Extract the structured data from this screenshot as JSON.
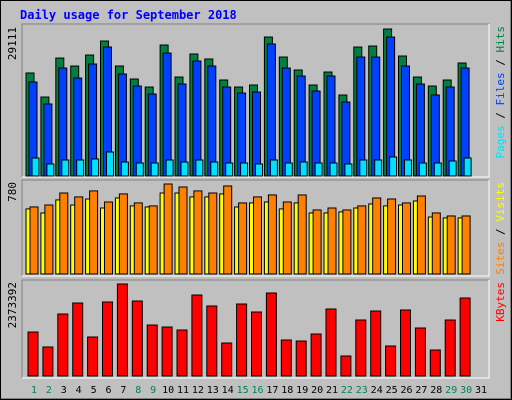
{
  "chart_data": {
    "type": "bar",
    "title": "Daily usage for September 2018",
    "categories": [
      "1",
      "2",
      "3",
      "4",
      "5",
      "6",
      "7",
      "8",
      "9",
      "10",
      "11",
      "12",
      "13",
      "14",
      "15",
      "16",
      "17",
      "18",
      "19",
      "20",
      "21",
      "22",
      "23",
      "24",
      "25",
      "26",
      "27",
      "28",
      "29",
      "30",
      "31"
    ],
    "category_colors": [
      "#00805c",
      "#00805c",
      "#000000",
      "#000000",
      "#000000",
      "#000000",
      "#000000",
      "#00805c",
      "#00805c",
      "#000000",
      "#000000",
      "#000000",
      "#000000",
      "#000000",
      "#00805c",
      "#00805c",
      "#000000",
      "#000000",
      "#000000",
      "#000000",
      "#000000",
      "#00805c",
      "#00805c",
      "#000000",
      "#000000",
      "#000000",
      "#000000",
      "#000000",
      "#00805c",
      "#00805c",
      "#000000"
    ],
    "legend_separator": " / ",
    "panels": [
      {
        "ylim": [
          0,
          29111
        ],
        "yticks": [
          29111
        ],
        "series": [
          {
            "name": "Hits",
            "color": "#008040",
            "values": [
              20400,
              15640,
              23360,
              21780,
              23960,
              26730,
              21780,
              19210,
              17620,
              25940,
              19600,
              24160,
              23170,
              19010,
              17620,
              18020,
              27520,
              23560,
              20990,
              18020,
              20590,
              16040,
              25540,
              25740,
              29111,
              23760,
              19600,
              17820,
              19010,
              22380,
              null
            ]
          },
          {
            "name": "Files",
            "color": "#0040ff",
            "values": [
              18610,
              14260,
              21380,
              19400,
              22180,
              25540,
              20200,
              17820,
              16240,
              24350,
              18220,
              22770,
              21780,
              17620,
              16430,
              16630,
              26140,
              21380,
              19800,
              16830,
              19800,
              14650,
              23560,
              23560,
              27520,
              21780,
              18220,
              16040,
              17620,
              21380,
              null
            ]
          },
          {
            "name": "Pages",
            "color": "#00e0ff",
            "values": [
              3560,
              2380,
              3170,
              3170,
              3370,
              4750,
              2770,
              2570,
              2570,
              3170,
              2770,
              3170,
              2770,
              2570,
              2570,
              2380,
              3170,
              2570,
              2770,
              2570,
              2570,
              2380,
              3170,
              3170,
              3760,
              3170,
              2570,
              2570,
              2970,
              3560,
              null
            ]
          }
        ]
      },
      {
        "ylim": [
          0,
          780
        ],
        "yticks": [
          780
        ],
        "series": [
          {
            "name": "Visits",
            "color": "#ffff00",
            "values": [
              564,
              529,
              642,
              598,
              650,
              572,
              659,
              590,
              581,
              702,
              702,
              668,
              668,
              694,
              581,
              616,
              624,
              564,
              616,
              529,
              529,
              538,
              572,
              607,
              590,
              598,
              633,
              494,
              486,
              486,
              null
            ]
          },
          {
            "name": "Sites",
            "color": "#ff8000",
            "values": [
              581,
              598,
              702,
              668,
              720,
              624,
              694,
              616,
              590,
              780,
              754,
              720,
              702,
              763,
              616,
              668,
              685,
              624,
              685,
              555,
              572,
              555,
              590,
              659,
              650,
              616,
              676,
              529,
              503,
              503,
              null
            ]
          }
        ]
      },
      {
        "ylim": [
          0,
          2373392
        ],
        "yticks": [
          2373392
        ],
        "series": [
          {
            "name": "KBytes",
            "color": "#ff0000",
            "values": [
              1135100,
              748100,
              1599500,
              1883300,
              1006100,
              1909100,
              2373392,
              1934900,
              1315700,
              1264100,
              1186700,
              2089600,
              1805900,
              851300,
              1857500,
              1651100,
              2141200,
              928700,
              902900,
              1083500,
              1728500,
              516000,
              1444700,
              1676900,
              773900,
              1702700,
              1238300,
              670700,
              1444700,
              2012200,
              null
            ]
          }
        ]
      }
    ]
  }
}
